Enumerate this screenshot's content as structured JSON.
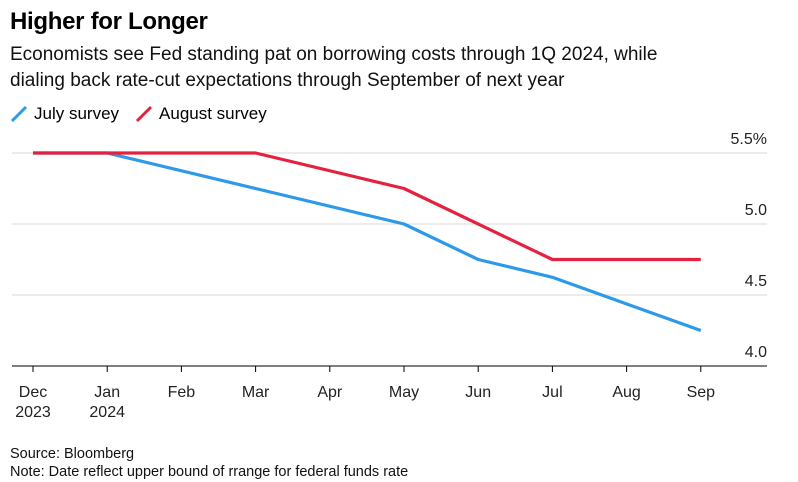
{
  "header": {
    "title": "Higher for Longer",
    "subtitle_line1": "Economists see Fed standing pat on borrowing costs through 1Q 2024, while",
    "subtitle_line2": "dialing back rate-cut expectations through September of next year"
  },
  "footer": {
    "source": "Source: Bloomberg",
    "note": "Note: Date reflect upper bound of rrange for federal funds rate"
  },
  "chart_data": {
    "type": "line",
    "title": "Higher for Longer",
    "x": [
      "Dec 2023",
      "Jan 2024",
      "Feb",
      "Mar",
      "Apr",
      "May",
      "Jun",
      "Jul",
      "Aug",
      "Sep"
    ],
    "x_tick_labels": [
      [
        "Dec",
        "2023"
      ],
      [
        "Jan",
        "2024"
      ],
      [
        "Feb"
      ],
      [
        "Mar"
      ],
      [
        "Apr"
      ],
      [
        "May"
      ],
      [
        "Jun"
      ],
      [
        "Jul"
      ],
      [
        "Aug"
      ],
      [
        "Sep"
      ]
    ],
    "y_ticks": [
      4.0,
      4.5,
      5.0,
      5.5
    ],
    "y_tick_labels": [
      "4.0",
      "4.5",
      "5.0",
      "5.5%"
    ],
    "ylim": [
      4.0,
      5.5
    ],
    "grid": true,
    "legend_position": "top-left",
    "series": [
      {
        "name": "July survey",
        "color": "#2c9ae8",
        "points": [
          {
            "x": "Dec 2023",
            "y": 5.5
          },
          {
            "x": "Jan 2024",
            "y": 5.5
          },
          {
            "x": "Mar",
            "y": 5.25
          },
          {
            "x": "May",
            "y": 5.0
          },
          {
            "x": "Jun",
            "y": 4.75
          },
          {
            "x": "Jul",
            "y": 4.625
          },
          {
            "x": "Sep",
            "y": 4.25
          }
        ]
      },
      {
        "name": "August survey",
        "color": "#e4223f",
        "points": [
          {
            "x": "Dec 2023",
            "y": 5.5
          },
          {
            "x": "Jan 2024",
            "y": 5.5
          },
          {
            "x": "Mar",
            "y": 5.5
          },
          {
            "x": "May",
            "y": 5.25
          },
          {
            "x": "Jul",
            "y": 4.75
          },
          {
            "x": "Sep",
            "y": 4.75
          }
        ]
      }
    ]
  }
}
